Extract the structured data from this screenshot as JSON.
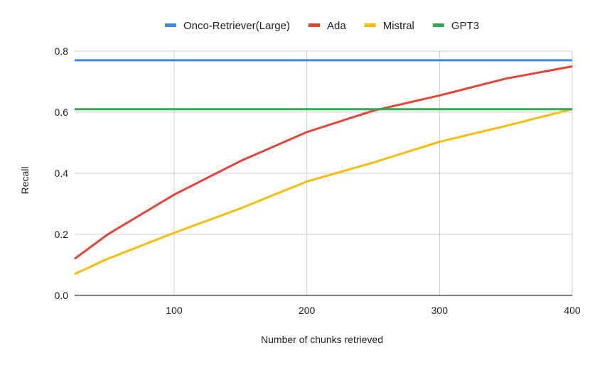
{
  "chart_data": {
    "type": "line",
    "xlabel": "Number of chunks retrieved",
    "ylabel": "Recall",
    "xlim": [
      25,
      400
    ],
    "ylim": [
      0,
      0.8
    ],
    "x_ticks": [
      "100",
      "200",
      "300",
      "400"
    ],
    "y_ticks": [
      "0.0",
      "0.2",
      "0.4",
      "0.6",
      "0.8"
    ],
    "grid": true,
    "legend_position": "top",
    "series": [
      {
        "name": "Onco-Retriever(Large)",
        "color": "#4285f4",
        "x": [
          25,
          400
        ],
        "y": [
          0.77,
          0.77
        ]
      },
      {
        "name": "Ada",
        "color": "#ea4335",
        "x": [
          25,
          50,
          100,
          150,
          200,
          250,
          300,
          350,
          400
        ],
        "y": [
          0.12,
          0.2,
          0.33,
          0.44,
          0.535,
          0.605,
          0.655,
          0.71,
          0.75
        ]
      },
      {
        "name": "Mistral",
        "color": "#fbbc04",
        "x": [
          25,
          50,
          100,
          150,
          200,
          250,
          300,
          350,
          400
        ],
        "y": [
          0.07,
          0.12,
          0.205,
          0.285,
          0.373,
          0.435,
          0.503,
          0.555,
          0.61
        ]
      },
      {
        "name": "GPT3",
        "color": "#34a853",
        "x": [
          25,
          400
        ],
        "y": [
          0.61,
          0.61
        ]
      }
    ]
  }
}
